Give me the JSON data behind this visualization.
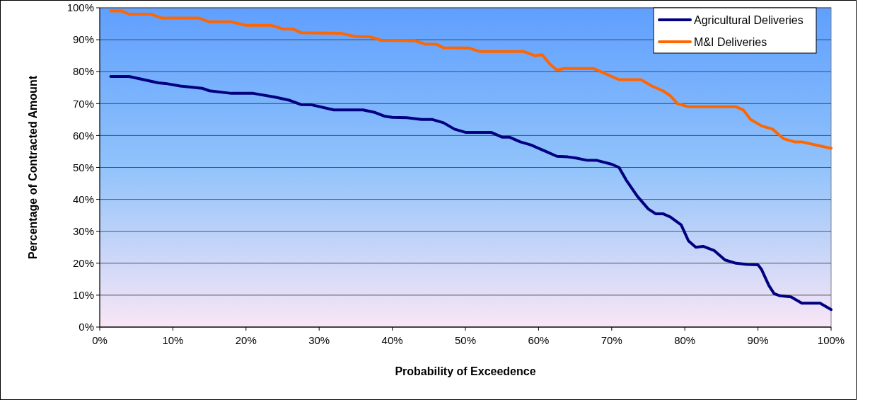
{
  "chart_data": {
    "type": "line",
    "xlabel": "Probability of Exceedence",
    "ylabel": "Percentage of Contracted Amount",
    "xlim": [
      0,
      100
    ],
    "xticks": [
      {
        "value": 0,
        "label": "0%"
      },
      {
        "value": 10,
        "label": "10%"
      },
      {
        "value": 20,
        "label": "20%"
      },
      {
        "value": 30,
        "label": "30%"
      },
      {
        "value": 40,
        "label": "40%"
      },
      {
        "value": 50,
        "label": "50%"
      },
      {
        "value": 60,
        "label": "60%"
      },
      {
        "value": 70,
        "label": "70%"
      },
      {
        "value": 80,
        "label": "80%"
      },
      {
        "value": 90,
        "label": "90%"
      },
      {
        "value": 100,
        "label": "100%"
      }
    ],
    "ylim": [
      0,
      100
    ],
    "yticks": [
      {
        "value": 0,
        "label": "0%"
      },
      {
        "value": 10,
        "label": "10%"
      },
      {
        "value": 20,
        "label": "20%"
      },
      {
        "value": 30,
        "label": "30%"
      },
      {
        "value": 40,
        "label": "40%"
      },
      {
        "value": 50,
        "label": "50%"
      },
      {
        "value": 60,
        "label": "60%"
      },
      {
        "value": 70,
        "label": "70%"
      },
      {
        "value": 80,
        "label": "80%"
      },
      {
        "value": 90,
        "label": "90%"
      },
      {
        "value": 100,
        "label": "100%"
      }
    ],
    "grid": "y",
    "legend": "top right",
    "marker": "none",
    "line_style": "solid",
    "series": [
      {
        "name": "Agricultural Deliveries",
        "color": "#000080",
        "x": [
          1.5,
          4,
          6,
          8,
          9,
          11,
          14,
          15,
          18,
          21,
          24,
          26,
          27.5,
          29,
          32,
          36,
          37.5,
          39,
          40,
          42,
          44,
          45.5,
          47,
          48.5,
          50,
          53.5,
          55,
          56,
          57.5,
          59,
          61,
          62.5,
          64,
          65,
          66.5,
          68,
          70,
          71,
          72,
          73.5,
          75,
          76,
          77,
          78,
          79.5,
          80.5,
          81.5,
          82.5,
          84,
          85.5,
          87,
          88.5,
          90,
          90.5,
          91.5,
          92.2,
          93,
          94.5,
          96,
          98.5,
          100
        ],
        "values": [
          78.5,
          78.5,
          77.5,
          76.5,
          76.3,
          75.5,
          74.8,
          74,
          73.2,
          73.2,
          72,
          71,
          69.7,
          69.6,
          68,
          68,
          67.3,
          66,
          65.7,
          65.6,
          65,
          65,
          64,
          62,
          61,
          61,
          59.5,
          59.5,
          58,
          57,
          55,
          53.5,
          53.3,
          53,
          52.3,
          52.2,
          51,
          50,
          46,
          41,
          37,
          35.5,
          35.5,
          34.5,
          32,
          27,
          25,
          25.3,
          24,
          21,
          20,
          19.6,
          19.5,
          18,
          13,
          10.5,
          9.8,
          9.5,
          7.5,
          7.5,
          5.5
        ]
      },
      {
        "name": "M&I Deliveries",
        "color": "#ff6600",
        "x": [
          1.5,
          3,
          4,
          7,
          8.5,
          13.5,
          15,
          18,
          20,
          23.5,
          25,
          26.5,
          27.5,
          33,
          35,
          37,
          38.5,
          43,
          44.5,
          46,
          47,
          50.5,
          52,
          58,
          59.5,
          60.5,
          61.5,
          62.5,
          63.5,
          67.5,
          70,
          71,
          74,
          75.5,
          77,
          78,
          79,
          80.5,
          87,
          88,
          89,
          90.5,
          92,
          93.5,
          95,
          96,
          98,
          100
        ],
        "values": [
          99,
          99,
          98,
          98,
          96.8,
          96.8,
          95.6,
          95.6,
          94.5,
          94.5,
          93.4,
          93.3,
          92.2,
          92,
          91,
          90.9,
          89.8,
          89.7,
          88.6,
          88.6,
          87.5,
          87.4,
          86.3,
          86.3,
          85,
          85.3,
          82.5,
          80.5,
          81,
          81,
          78.5,
          77.5,
          77.5,
          75.5,
          74,
          72.5,
          70,
          69,
          69,
          68,
          65,
          63,
          62,
          59,
          58,
          58,
          57,
          56
        ]
      }
    ]
  }
}
